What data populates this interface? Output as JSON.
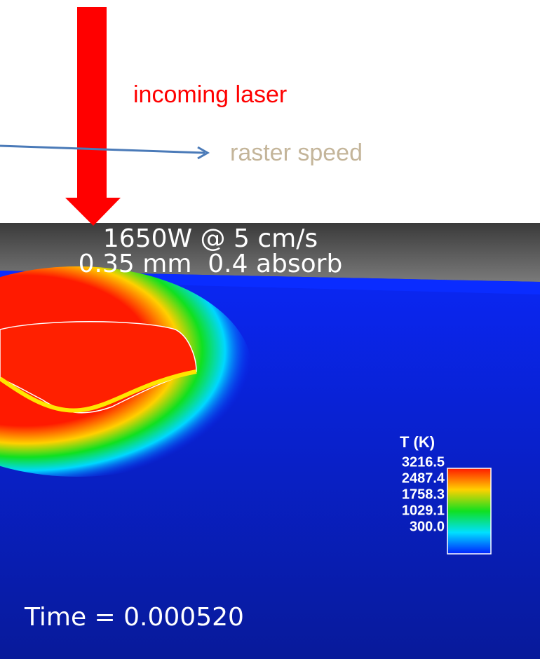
{
  "annotations": {
    "laser": "incoming laser",
    "raster": "raster speed"
  },
  "simulation": {
    "line1": "1650W @ 5 cm/s",
    "line2": "0.35 mm  0.4 absorb",
    "time": "Time = 0.000520"
  },
  "legend": {
    "title": "T (K)",
    "labels": [
      "3216.5",
      "2487.4",
      "1758.3",
      "1029.1",
      "300.0"
    ]
  }
}
